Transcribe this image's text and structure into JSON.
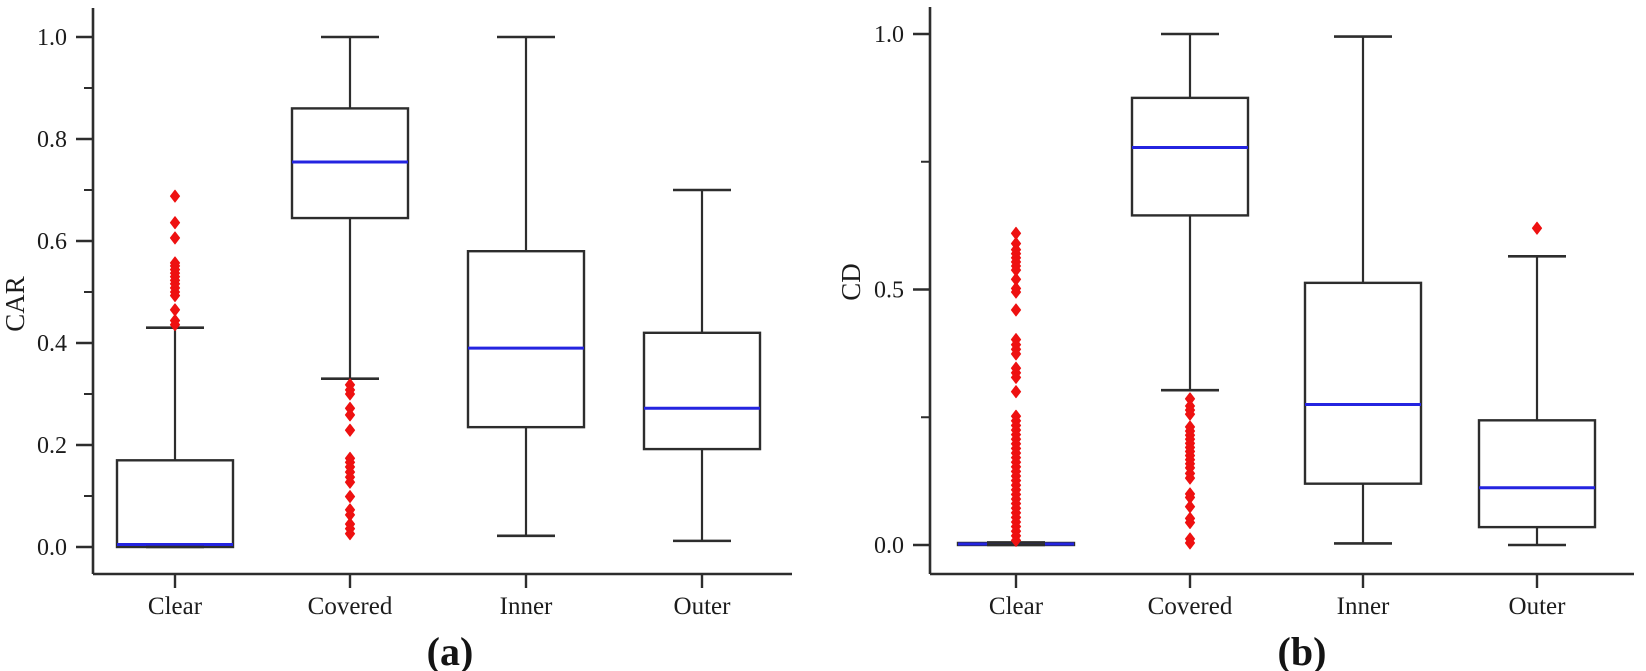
{
  "style": {
    "line_color": "#2d2d2d",
    "median_color": "#2424e0",
    "outlier_color": "#ee1111",
    "text_color": "#1c1c1c",
    "background": "#ffffff"
  },
  "chart_data": [
    {
      "type": "box",
      "caption": "(a)",
      "ylabel": "CAR",
      "categories": [
        "Clear",
        "Covered",
        "Inner",
        "Outer"
      ],
      "ylim": [
        -0.05,
        1.06
      ],
      "yticks_major": [
        0.0,
        0.2,
        0.4,
        0.6,
        0.8,
        1.0
      ],
      "ytick_minor_step": 0.1,
      "grid": false,
      "legend": "none",
      "boxes": [
        {
          "category": "Clear",
          "q1": 0.0,
          "median": 0.005,
          "q3": 0.17,
          "whisker_low": 0.0,
          "whisker_high": 0.43,
          "outliers": [
            0.688,
            0.636,
            0.606,
            0.557,
            0.551,
            0.544,
            0.537,
            0.53,
            0.523,
            0.516,
            0.508,
            0.5,
            0.493,
            0.465,
            0.444,
            0.436
          ]
        },
        {
          "category": "Covered",
          "q1": 0.645,
          "median": 0.755,
          "q3": 0.86,
          "whisker_low": 0.33,
          "whisker_high": 1.0,
          "outliers": [
            0.318,
            0.308,
            0.3,
            0.272,
            0.259,
            0.229,
            0.174,
            0.166,
            0.157,
            0.147,
            0.137,
            0.127,
            0.099,
            0.073,
            0.063,
            0.045,
            0.036,
            0.026
          ]
        },
        {
          "category": "Inner",
          "q1": 0.235,
          "median": 0.39,
          "q3": 0.58,
          "whisker_low": 0.022,
          "whisker_high": 1.0,
          "outliers": []
        },
        {
          "category": "Outer",
          "q1": 0.192,
          "median": 0.272,
          "q3": 0.42,
          "whisker_low": 0.012,
          "whisker_high": 0.7,
          "outliers": []
        }
      ]
    },
    {
      "type": "box",
      "caption": "(b)",
      "ylabel": "CD",
      "categories": [
        "Clear",
        "Covered",
        "Inner",
        "Outer"
      ],
      "ylim": [
        -0.05,
        1.06
      ],
      "yticks_major": [
        0.0,
        0.5,
        1.0
      ],
      "ytick_minor_step": 0.25,
      "grid": false,
      "legend": "none",
      "boxes": [
        {
          "category": "Clear",
          "q1": 0.0,
          "median": 0.002,
          "q3": 0.004,
          "whisker_low": 0.0,
          "whisker_high": 0.005,
          "outliers": [
            0.61,
            0.59,
            0.578,
            0.57,
            0.562,
            0.554,
            0.546,
            0.538,
            0.52,
            0.502,
            0.495,
            0.46,
            0.402,
            0.392,
            0.383,
            0.374,
            0.346,
            0.337,
            0.328,
            0.3,
            0.252,
            0.243,
            0.234,
            0.225,
            0.216,
            0.207,
            0.198,
            0.189,
            0.18,
            0.171,
            0.162,
            0.153,
            0.144,
            0.135,
            0.126,
            0.117,
            0.108,
            0.099,
            0.09,
            0.081,
            0.072,
            0.063,
            0.054,
            0.045,
            0.036,
            0.027,
            0.018,
            0.009
          ]
        },
        {
          "category": "Covered",
          "q1": 0.645,
          "median": 0.778,
          "q3": 0.875,
          "whisker_low": 0.303,
          "whisker_high": 1.0,
          "outliers": [
            0.286,
            0.272,
            0.264,
            0.256,
            0.231,
            0.223,
            0.215,
            0.207,
            0.199,
            0.191,
            0.183,
            0.175,
            0.167,
            0.159,
            0.151,
            0.14,
            0.131,
            0.1,
            0.093,
            0.075,
            0.052,
            0.044,
            0.012,
            0.004
          ]
        },
        {
          "category": "Inner",
          "q1": 0.12,
          "median": 0.275,
          "q3": 0.513,
          "whisker_low": 0.003,
          "whisker_high": 0.995,
          "outliers": []
        },
        {
          "category": "Outer",
          "q1": 0.035,
          "median": 0.112,
          "q3": 0.244,
          "whisker_low": 0.0,
          "whisker_high": 0.565,
          "outliers": [
            0.62
          ]
        }
      ]
    }
  ]
}
